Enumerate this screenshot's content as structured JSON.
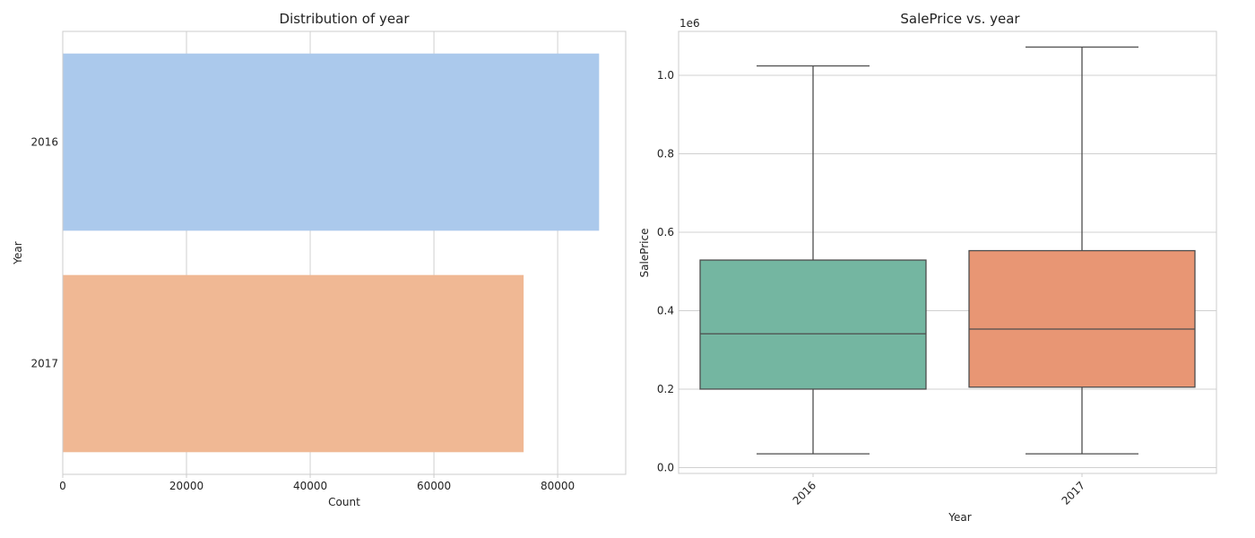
{
  "chart_data": [
    {
      "type": "bar",
      "orientation": "horizontal",
      "title": "Distribution of year",
      "xlabel": "Count",
      "ylabel": "Year",
      "categories": [
        "2016",
        "2017"
      ],
      "values": [
        86700,
        74500
      ],
      "colors": [
        "#abc9ec",
        "#f0b894"
      ],
      "xlim": [
        0,
        91000
      ],
      "xticks": [
        0,
        20000,
        40000,
        60000,
        80000
      ],
      "xtick_labels": [
        "0",
        "20000",
        "40000",
        "60000",
        "80000"
      ],
      "grid": true
    },
    {
      "type": "box",
      "title": "SalePrice vs. year",
      "xlabel": "Year",
      "ylabel": "SalePrice",
      "offset_label": "1e6",
      "categories": [
        "2016",
        "2017"
      ],
      "colors": [
        "#74b6a1",
        "#e89674"
      ],
      "boxes": [
        {
          "whisker_low": 0.035,
          "q1": 0.2,
          "median": 0.341,
          "q3": 0.529,
          "whisker_high": 1.024
        },
        {
          "whisker_low": 0.035,
          "q1": 0.205,
          "median": 0.353,
          "q3": 0.553,
          "whisker_high": 1.072
        }
      ],
      "ylim": [
        -0.015,
        1.112
      ],
      "yticks": [
        0.0,
        0.2,
        0.4,
        0.6,
        0.8,
        1.0
      ],
      "ytick_labels": [
        "0.0",
        "0.2",
        "0.4",
        "0.6",
        "0.8",
        "1.0"
      ],
      "grid": true
    }
  ]
}
